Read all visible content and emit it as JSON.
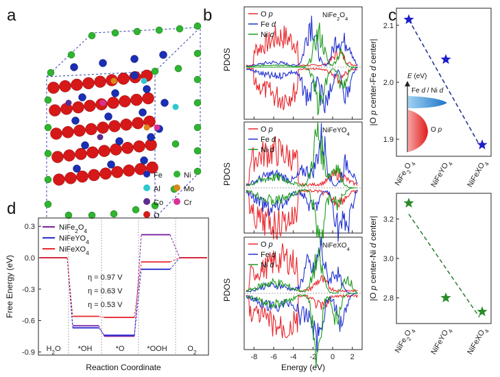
{
  "panels": {
    "a": "a",
    "b": "b",
    "c": "c",
    "d": "d"
  },
  "structure_legend": {
    "items": [
      {
        "label": "Fe",
        "color": "#1a2fb4"
      },
      {
        "label": "Ni",
        "color": "#2fb52f"
      },
      {
        "label": "Al",
        "color": "#2ec8d0"
      },
      {
        "label": "Mo",
        "color": "#d98a1a"
      },
      {
        "label": "Co",
        "color": "#5b2d90"
      },
      {
        "label": "Cr",
        "color": "#d8329a"
      },
      {
        "label": "O",
        "color": "#d81a1a"
      }
    ]
  },
  "colors": {
    "o_p": "#e8262b",
    "fe_d": "#1f2fd0",
    "ni_d": "#1a9a1a",
    "ni_star": "#2a8a2a",
    "fe_star": "#1d1dcc",
    "nife2o4": "#7b1fa2",
    "nifeyo4": "#2a2ad0",
    "nifexo4": "#e8262b"
  },
  "chart_data": [
    {
      "id": "b1",
      "type": "line",
      "title": "NiFe2O4",
      "ylabel": "PDOS",
      "xlabel": "",
      "xlim": [
        -9,
        3
      ],
      "xticks": [],
      "legend": [
        "O p",
        "Fe d",
        "Ni d"
      ]
    },
    {
      "id": "b2",
      "type": "line",
      "title": "NiFeYO4",
      "ylabel": "PDOS",
      "xlabel": "",
      "xlim": [
        -9,
        3
      ],
      "xticks": [],
      "legend": [
        "O p",
        "Fe d",
        "Ni d"
      ]
    },
    {
      "id": "b3",
      "type": "line",
      "title": "NiFeXO4",
      "ylabel": "PDOS",
      "xlabel": "Energy (eV)",
      "xlim": [
        -9,
        3
      ],
      "xticks": [
        "-8",
        "-6",
        "-4",
        "-2",
        "0",
        "2"
      ],
      "legend": [
        "O p",
        "Fe d",
        "Ni d"
      ]
    },
    {
      "id": "c1",
      "type": "scatter",
      "ylabel": "|O p center-Fe d center|",
      "categories": [
        "NiFe2O4",
        "NiFeYO4",
        "NiFeXO4"
      ],
      "values": [
        2.11,
        2.04,
        1.89
      ],
      "ylim": [
        1.87,
        2.13
      ],
      "yticks": [
        "1.9",
        "2.0",
        "2.1"
      ],
      "inset": {
        "axis": "E (eV)",
        "upper": "Fe d / Ni d",
        "lower": "O p"
      }
    },
    {
      "id": "c2",
      "type": "scatter",
      "ylabel": "|O p center-Ni d center|",
      "categories": [
        "NiFe2O4",
        "NiFeYO4",
        "NiFeXO4"
      ],
      "values": [
        3.28,
        2.8,
        2.73
      ],
      "ylim": [
        2.67,
        3.33
      ],
      "yticks": [
        "2.8",
        "3.0",
        "3.2"
      ]
    },
    {
      "id": "d",
      "type": "line",
      "xlabel": "Reaction Coordinate",
      "ylabel": "Free Energy (eV)",
      "ylim": [
        -0.93,
        0.38
      ],
      "yticks": [
        "0.3",
        "0.0",
        "-0.3",
        "-0.6",
        "-0.9"
      ],
      "steps": [
        "H2O",
        "*OH",
        "*O",
        "*OOH",
        "O2"
      ],
      "series": [
        {
          "name": "NiFe2O4",
          "values": [
            0.0,
            -0.65,
            -0.75,
            0.22,
            0.0
          ],
          "overpotential": "η = 0.97 V"
        },
        {
          "name": "NiFeYO4",
          "values": [
            0.0,
            -0.67,
            -0.74,
            -0.11,
            0.0
          ],
          "overpotential": "η = 0.63 V"
        },
        {
          "name": "NiFeXO4",
          "values": [
            0.0,
            -0.56,
            -0.57,
            -0.04,
            0.0
          ],
          "overpotential": "η = 0.53 V"
        }
      ]
    }
  ]
}
